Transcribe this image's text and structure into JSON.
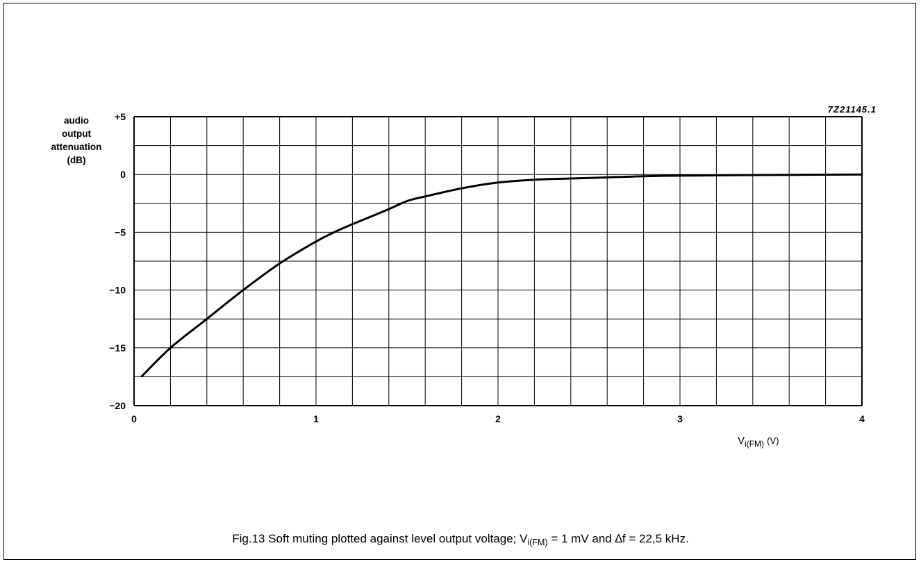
{
  "figure": {
    "code": "7Z21145.1",
    "caption": {
      "prefix": "Fig.13  Soft muting plotted against level output voltage; V",
      "sub": "i(FM)",
      "suffix": " = 1 mV and ∆f = 22,5 kHz."
    }
  },
  "chart_data": {
    "type": "line",
    "ylabel_lines": [
      "audio",
      "output",
      "attenuation",
      "(dB)"
    ],
    "xlabel": {
      "main": "V",
      "sub": "i(FM)",
      "unit": "(V)"
    },
    "xlim": [
      0,
      4
    ],
    "ylim": [
      -20,
      5
    ],
    "x_ticks": [
      0,
      1,
      2,
      3,
      4
    ],
    "x_tick_labels": [
      "0",
      "1",
      "2",
      "3",
      "4"
    ],
    "y_ticks": [
      5,
      0,
      -5,
      -10,
      -15,
      -20
    ],
    "y_tick_labels": [
      "+5",
      "0",
      "−5",
      "−10",
      "−15",
      "−20"
    ],
    "grid": true,
    "grid_x_step": 0.2,
    "grid_y_step": 2.5,
    "series": [
      {
        "color": "#000000",
        "x": [
          0.04,
          0.2,
          0.4,
          0.6,
          0.8,
          1.0,
          1.1,
          1.2,
          1.4,
          1.5,
          1.6,
          1.8,
          2.0,
          2.2,
          2.4,
          2.6,
          2.8,
          3.0,
          3.4,
          4.0
        ],
        "y": [
          -17.5,
          -15.0,
          -12.5,
          -10.0,
          -7.7,
          -5.8,
          -5.0,
          -4.3,
          -3.0,
          -2.3,
          -1.9,
          -1.2,
          -0.7,
          -0.45,
          -0.35,
          -0.25,
          -0.15,
          -0.1,
          -0.05,
          0.0
        ]
      }
    ]
  }
}
